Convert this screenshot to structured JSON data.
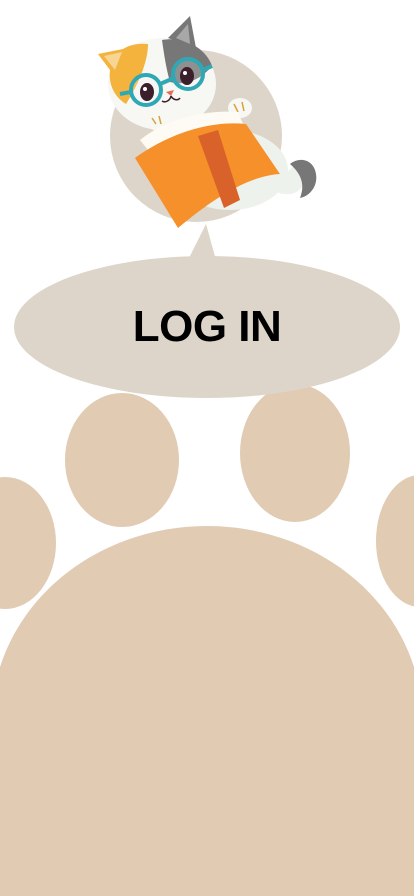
{
  "login": {
    "label": "LOG IN"
  },
  "colors": {
    "background": "#ffffff",
    "paw": "#e1cbb3",
    "bubble": "#ddd5c9",
    "mascot_halo": "#ddd5c9",
    "book_cover": "#f5902a",
    "book_spine": "#d9622a",
    "cat_orange": "#f3b33d",
    "cat_gray": "#777777",
    "glasses": "#2fa8b5",
    "label_text": "#000000"
  },
  "icons": {
    "mascot": "cat-reading-book-icon",
    "paw": "paw-print-icon"
  }
}
